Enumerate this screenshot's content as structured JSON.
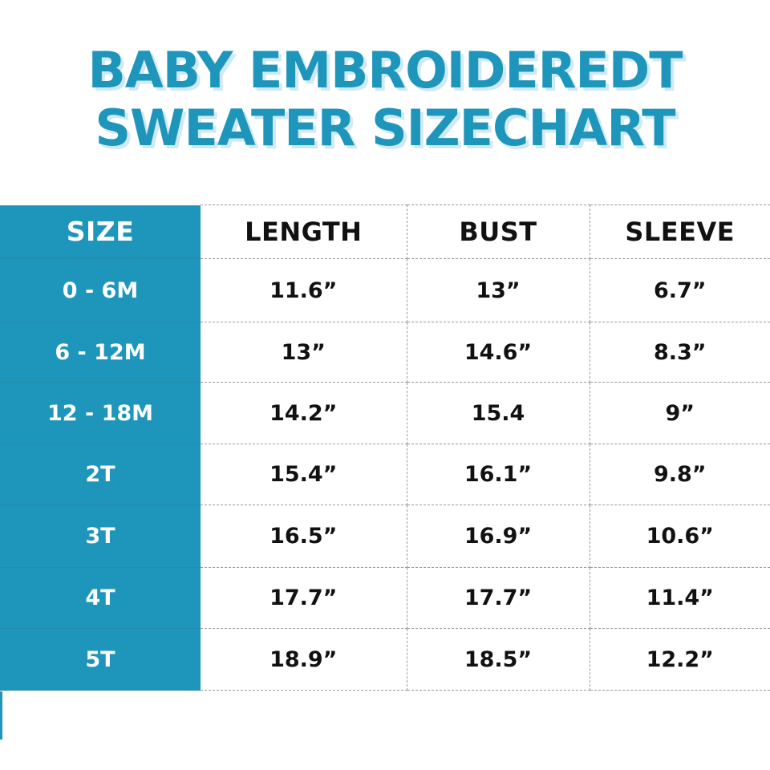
{
  "colors": {
    "accent": "#1e96bb",
    "title_shadow": "#cfeaf4"
  },
  "title": {
    "line1": "BABY EMBROIDEREDT",
    "line2": "SWEATER SIZECHART"
  },
  "table": {
    "headers": [
      "SIZE",
      "LENGTH",
      "BUST",
      "SLEEVE"
    ],
    "rows": [
      [
        "0 - 6M",
        "11.6”",
        "13”",
        "6.7”"
      ],
      [
        "6 - 12M",
        "13”",
        "14.6”",
        "8.3”"
      ],
      [
        "12 - 18M",
        "14.2”",
        "15.4",
        "9”"
      ],
      [
        "2T",
        "15.4”",
        "16.1”",
        "9.8”"
      ],
      [
        "3T",
        "16.5”",
        "16.9”",
        "10.6”"
      ],
      [
        "4T",
        "17.7”",
        "17.7”",
        "11.4”"
      ],
      [
        "5T",
        "18.9”",
        "18.5”",
        "12.2”"
      ]
    ]
  }
}
